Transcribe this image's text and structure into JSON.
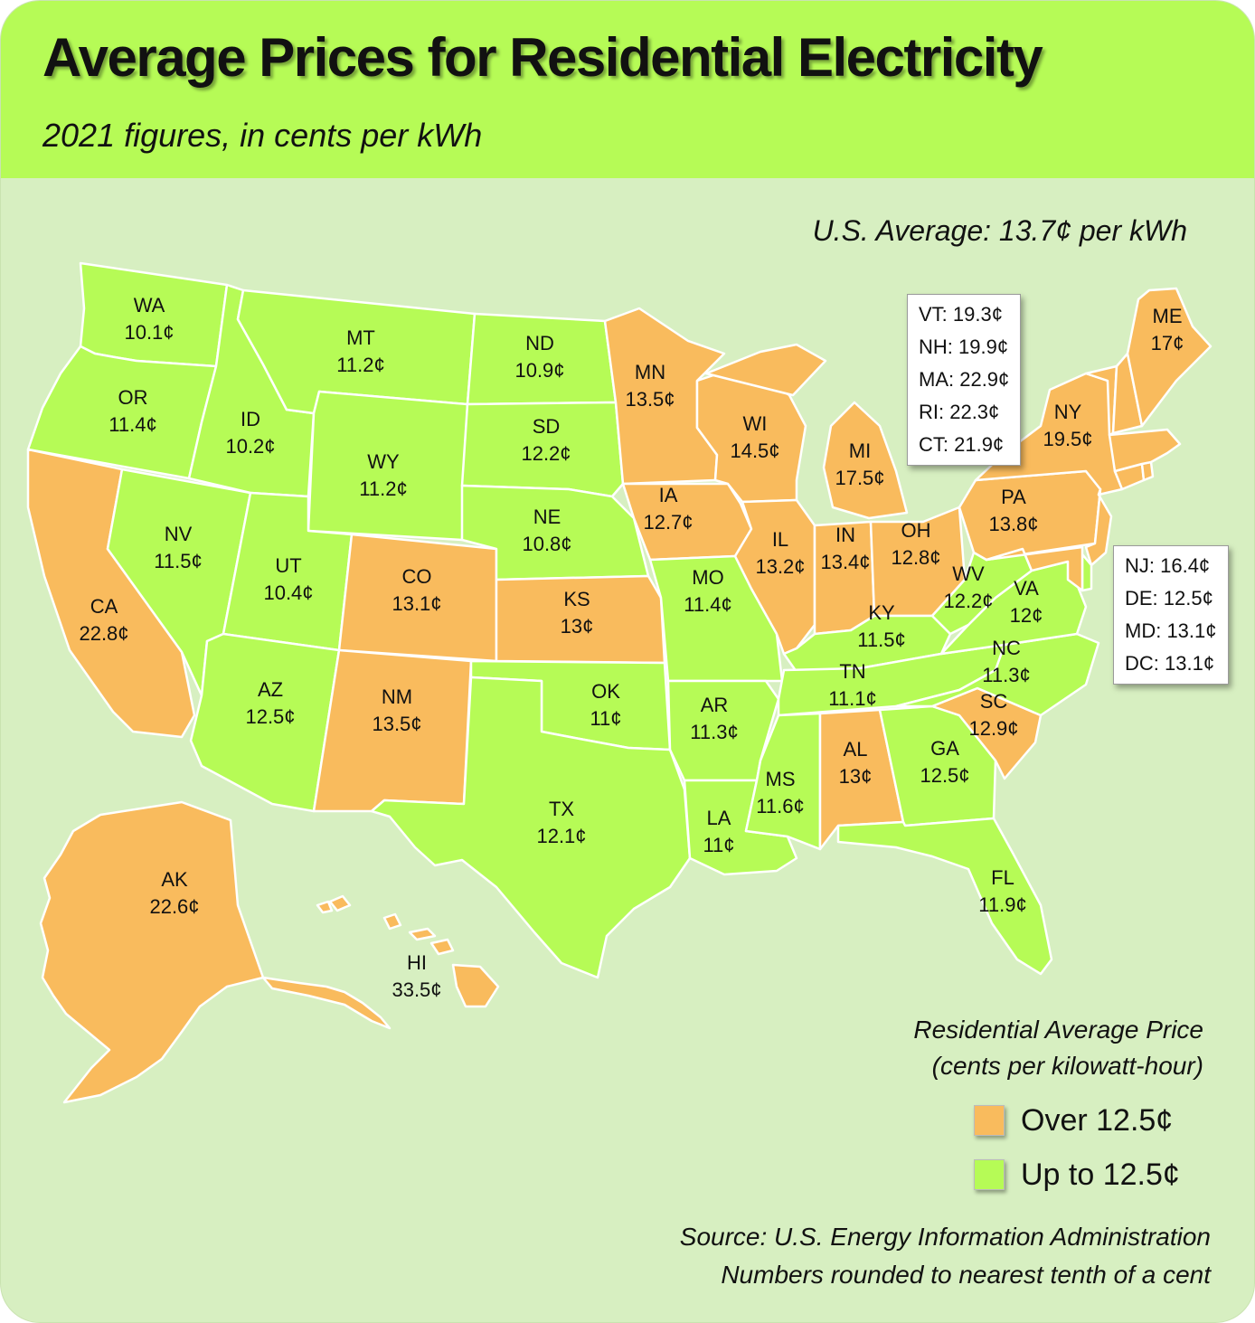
{
  "header": {
    "title": "Average Prices for Residential Electricity",
    "subtitle": "2021 figures, in cents per kWh"
  },
  "us_average": "U.S. Average: 13.7¢ per kWh",
  "colors": {
    "over": "#f9bb5d",
    "upto": "#b6fb56",
    "background": "#d7efc1",
    "header": "#b6fb56"
  },
  "states": [
    {
      "abbr": "WA",
      "price": "10.1¢",
      "category": "upto"
    },
    {
      "abbr": "OR",
      "price": "11.4¢",
      "category": "upto"
    },
    {
      "abbr": "CA",
      "price": "22.8¢",
      "category": "over"
    },
    {
      "abbr": "NV",
      "price": "11.5¢",
      "category": "upto"
    },
    {
      "abbr": "ID",
      "price": "10.2¢",
      "category": "upto"
    },
    {
      "abbr": "MT",
      "price": "11.2¢",
      "category": "upto"
    },
    {
      "abbr": "WY",
      "price": "11.2¢",
      "category": "upto"
    },
    {
      "abbr": "UT",
      "price": "10.4¢",
      "category": "upto"
    },
    {
      "abbr": "AZ",
      "price": "12.5¢",
      "category": "upto"
    },
    {
      "abbr": "CO",
      "price": "13.1¢",
      "category": "over"
    },
    {
      "abbr": "NM",
      "price": "13.5¢",
      "category": "over"
    },
    {
      "abbr": "ND",
      "price": "10.9¢",
      "category": "upto"
    },
    {
      "abbr": "SD",
      "price": "12.2¢",
      "category": "upto"
    },
    {
      "abbr": "NE",
      "price": "10.8¢",
      "category": "upto"
    },
    {
      "abbr": "KS",
      "price": "13¢",
      "category": "over"
    },
    {
      "abbr": "OK",
      "price": "11¢",
      "category": "upto"
    },
    {
      "abbr": "TX",
      "price": "12.1¢",
      "category": "upto"
    },
    {
      "abbr": "MN",
      "price": "13.5¢",
      "category": "over"
    },
    {
      "abbr": "IA",
      "price": "12.7¢",
      "category": "over"
    },
    {
      "abbr": "MO",
      "price": "11.4¢",
      "category": "upto"
    },
    {
      "abbr": "AR",
      "price": "11.3¢",
      "category": "upto"
    },
    {
      "abbr": "LA",
      "price": "11¢",
      "category": "upto"
    },
    {
      "abbr": "WI",
      "price": "14.5¢",
      "category": "over"
    },
    {
      "abbr": "IL",
      "price": "13.2¢",
      "category": "over"
    },
    {
      "abbr": "MI",
      "price": "17.5¢",
      "category": "over"
    },
    {
      "abbr": "IN",
      "price": "13.4¢",
      "category": "over"
    },
    {
      "abbr": "OH",
      "price": "12.8¢",
      "category": "over"
    },
    {
      "abbr": "KY",
      "price": "11.5¢",
      "category": "upto"
    },
    {
      "abbr": "TN",
      "price": "11.1¢",
      "category": "upto"
    },
    {
      "abbr": "MS",
      "price": "11.6¢",
      "category": "upto"
    },
    {
      "abbr": "AL",
      "price": "13¢",
      "category": "over"
    },
    {
      "abbr": "GA",
      "price": "12.5¢",
      "category": "upto"
    },
    {
      "abbr": "FL",
      "price": "11.9¢",
      "category": "upto"
    },
    {
      "abbr": "SC",
      "price": "12.9¢",
      "category": "over"
    },
    {
      "abbr": "NC",
      "price": "11.3¢",
      "category": "upto"
    },
    {
      "abbr": "VA",
      "price": "12¢",
      "category": "upto"
    },
    {
      "abbr": "WV",
      "price": "12.2¢",
      "category": "upto"
    },
    {
      "abbr": "PA",
      "price": "13.8¢",
      "category": "over"
    },
    {
      "abbr": "NY",
      "price": "19.5¢",
      "category": "over"
    },
    {
      "abbr": "ME",
      "price": "17¢",
      "category": "over"
    },
    {
      "abbr": "AK",
      "price": "22.6¢",
      "category": "over"
    },
    {
      "abbr": "HI",
      "price": "33.5¢",
      "category": "over"
    }
  ],
  "callout_northeast": [
    "VT: 19.3¢",
    "NH: 19.9¢",
    "MA: 22.9¢",
    "RI: 22.3¢",
    "CT: 21.9¢"
  ],
  "callout_midatlantic": [
    "NJ: 16.4¢",
    "DE: 12.5¢",
    "MD: 13.1¢",
    "DC: 13.1¢"
  ],
  "legend": {
    "title_line1": "Residential Average Price",
    "title_line2": "(cents per kilowatt-hour)",
    "over_label": "Over 12.5¢",
    "upto_label": "Up to 12.5¢"
  },
  "source": {
    "line1": "Source: U.S. Energy Information Administration",
    "line2": "Numbers rounded to nearest tenth of a cent"
  }
}
